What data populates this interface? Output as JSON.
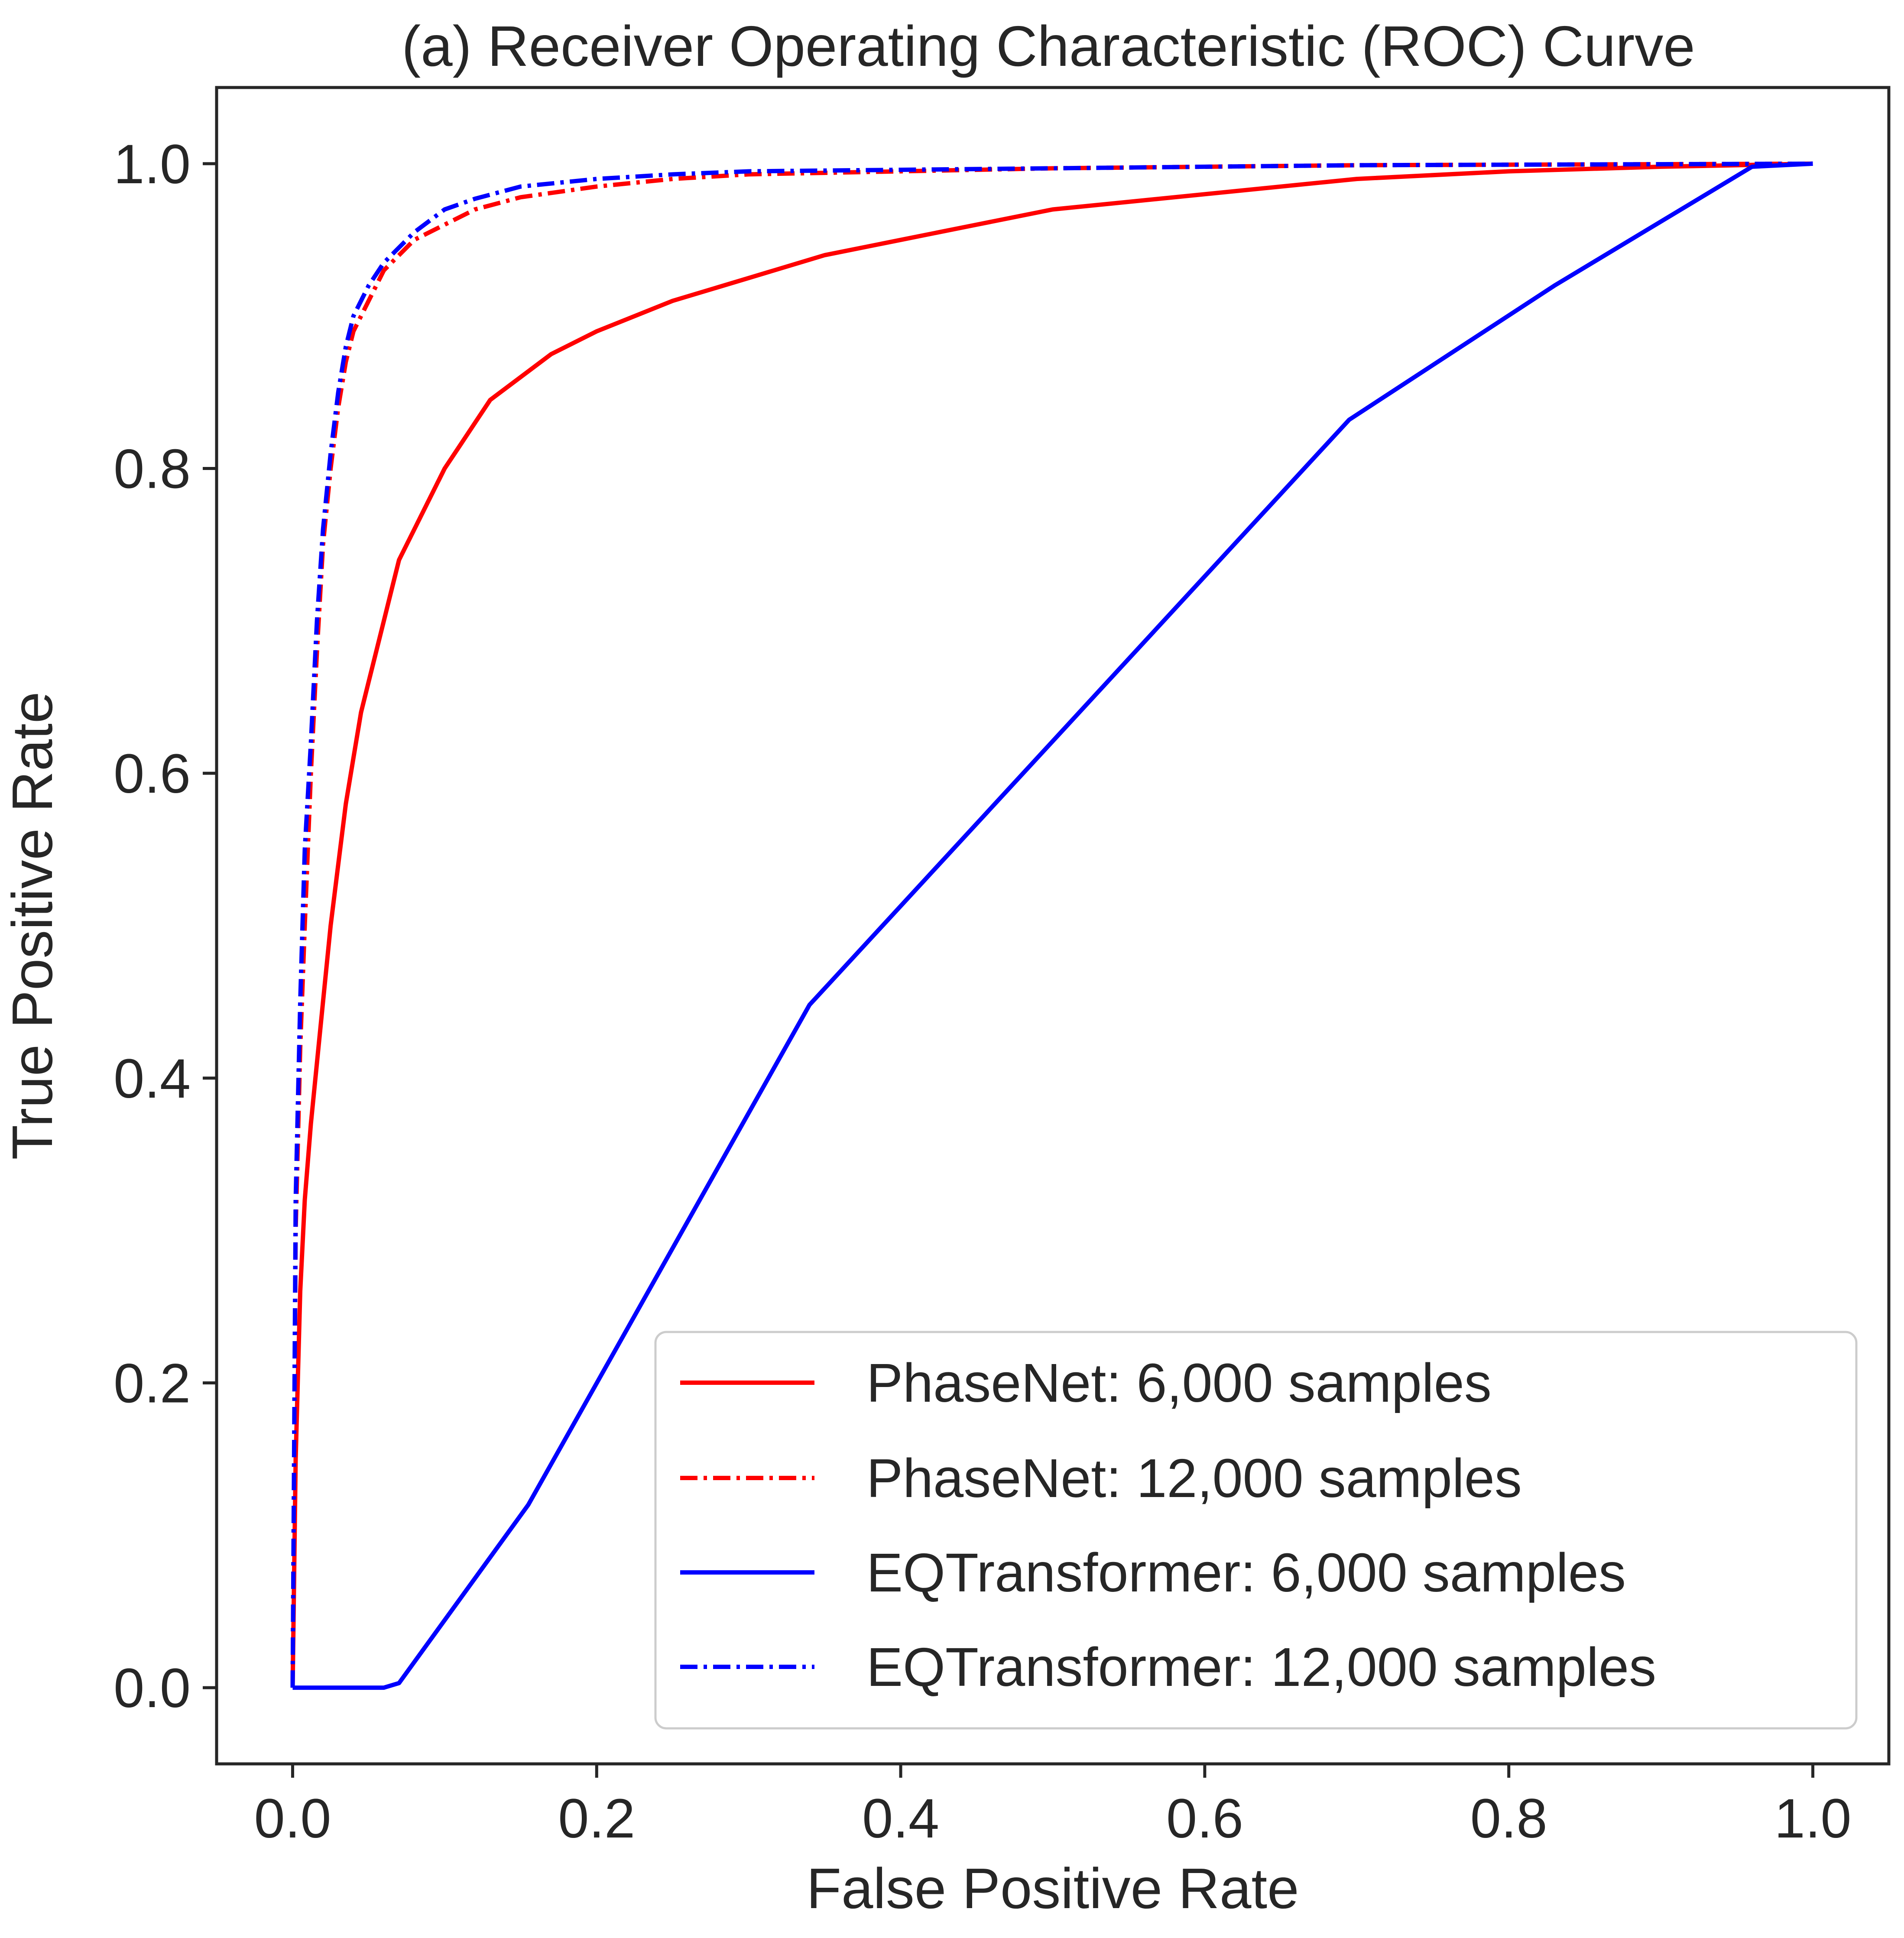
{
  "chart_data": {
    "type": "line",
    "title": "(a) Receiver Operating Characteristic (ROC) Curve",
    "xlabel": "False Positive Rate",
    "ylabel": "True Positive Rate",
    "xlim": [
      -0.05,
      1.05
    ],
    "ylim": [
      -0.05,
      1.05
    ],
    "xticks": [
      0.0,
      0.2,
      0.4,
      0.6,
      0.8,
      1.0
    ],
    "yticks": [
      0.0,
      0.2,
      0.4,
      0.6,
      0.8,
      1.0
    ],
    "xtick_labels": [
      "0.0",
      "0.2",
      "0.4",
      "0.6",
      "0.8",
      "1.0"
    ],
    "ytick_labels": [
      "0.0",
      "0.2",
      "0.4",
      "0.6",
      "0.8",
      "1.0"
    ],
    "grid": false,
    "legend_position": "lower-right",
    "series": [
      {
        "name": "PhaseNet: 6,000 samples",
        "color": "#ff0000",
        "linestyle": "solid",
        "x": [
          0.0,
          0.002,
          0.005,
          0.008,
          0.012,
          0.016,
          0.02,
          0.025,
          0.03,
          0.035,
          0.04,
          0.045,
          0.05,
          0.055,
          0.06,
          0.065,
          0.07,
          0.08,
          0.09,
          0.1,
          0.11,
          0.12,
          0.13,
          0.15,
          0.17,
          0.2,
          0.25,
          0.3,
          0.35,
          0.4,
          0.45,
          0.5,
          0.6,
          0.7,
          0.8,
          0.9,
          1.0
        ],
        "y": [
          0.0,
          0.15,
          0.26,
          0.32,
          0.37,
          0.41,
          0.45,
          0.5,
          0.54,
          0.58,
          0.61,
          0.64,
          0.66,
          0.68,
          0.7,
          0.72,
          0.74,
          0.76,
          0.78,
          0.8,
          0.815,
          0.83,
          0.845,
          0.86,
          0.875,
          0.89,
          0.91,
          0.925,
          0.94,
          0.95,
          0.96,
          0.97,
          0.98,
          0.99,
          0.995,
          0.998,
          1.0
        ]
      },
      {
        "name": "PhaseNet: 12,000 samples",
        "color": "#ff0000",
        "linestyle": "dashdot",
        "x": [
          0.0,
          0.002,
          0.005,
          0.008,
          0.012,
          0.016,
          0.02,
          0.025,
          0.03,
          0.035,
          0.04,
          0.05,
          0.06,
          0.07,
          0.08,
          0.1,
          0.12,
          0.15,
          0.2,
          0.25,
          0.3,
          0.4,
          0.5,
          0.7,
          1.0
        ],
        "y": [
          0.0,
          0.3,
          0.42,
          0.5,
          0.6,
          0.68,
          0.75,
          0.8,
          0.84,
          0.87,
          0.89,
          0.91,
          0.93,
          0.94,
          0.95,
          0.96,
          0.97,
          0.978,
          0.985,
          0.99,
          0.993,
          0.995,
          0.997,
          0.999,
          1.0
        ]
      },
      {
        "name": "EQTransformer: 6,000 samples",
        "color": "#0000ff",
        "linestyle": "solid",
        "x": [
          0.0,
          0.06,
          0.07,
          0.155,
          0.34,
          0.695,
          0.83,
          0.96,
          1.0
        ],
        "y": [
          0.0,
          0.0,
          0.003,
          0.12,
          0.448,
          0.832,
          0.92,
          0.998,
          1.0
        ]
      },
      {
        "name": "EQTransformer: 12,000 samples",
        "color": "#0000ff",
        "linestyle": "dashdot",
        "x": [
          0.0,
          0.002,
          0.005,
          0.008,
          0.012,
          0.016,
          0.02,
          0.025,
          0.03,
          0.035,
          0.04,
          0.05,
          0.06,
          0.07,
          0.08,
          0.1,
          0.12,
          0.15,
          0.2,
          0.25,
          0.3,
          0.4,
          0.5,
          0.7,
          1.0
        ],
        "y": [
          0.0,
          0.32,
          0.45,
          0.55,
          0.62,
          0.7,
          0.76,
          0.81,
          0.85,
          0.88,
          0.9,
          0.92,
          0.935,
          0.945,
          0.955,
          0.97,
          0.977,
          0.985,
          0.99,
          0.993,
          0.995,
          0.996,
          0.997,
          0.999,
          1.0
        ]
      }
    ]
  }
}
